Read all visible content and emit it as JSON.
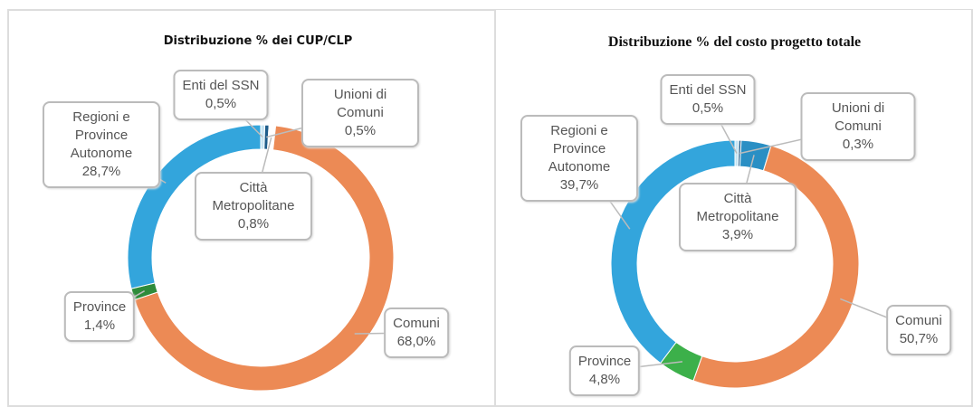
{
  "chart_data": [
    {
      "type": "donut",
      "title": "Distribuzione % dei CUP/CLP",
      "categories": [
        "Enti del SSN",
        "Unioni di Comuni",
        "Città Metropolitane",
        "Comuni",
        "Province",
        "Regioni e Province Autonome"
      ],
      "values": [
        0.5,
        0.5,
        0.8,
        68.0,
        1.4,
        28.7
      ],
      "value_labels": [
        "0,5%",
        "0,5%",
        "0,8%",
        "68,0%",
        "1,4%",
        "28,7%"
      ],
      "colors": [
        "#c6e4f3",
        "#1d5c8a",
        "#ffffff",
        "#ec8a55",
        "#2e8b3a",
        "#33a5dc"
      ]
    },
    {
      "type": "donut",
      "title": "Distribuzione % del costo progetto totale",
      "categories": [
        "Enti del SSN",
        "Unioni di Comuni",
        "Città Metropolitane",
        "Comuni",
        "Province",
        "Regioni e Province Autonome"
      ],
      "values": [
        0.5,
        0.3,
        3.9,
        50.7,
        4.8,
        39.7
      ],
      "value_labels": [
        "0,5%",
        "0,3%",
        "3,9%",
        "50,7%",
        "4,8%",
        "39,7%"
      ],
      "colors": [
        "#c6e4f3",
        "#1d5c8a",
        "#2a8fc4",
        "#ec8a55",
        "#3cb04a",
        "#33a5dc"
      ]
    }
  ]
}
